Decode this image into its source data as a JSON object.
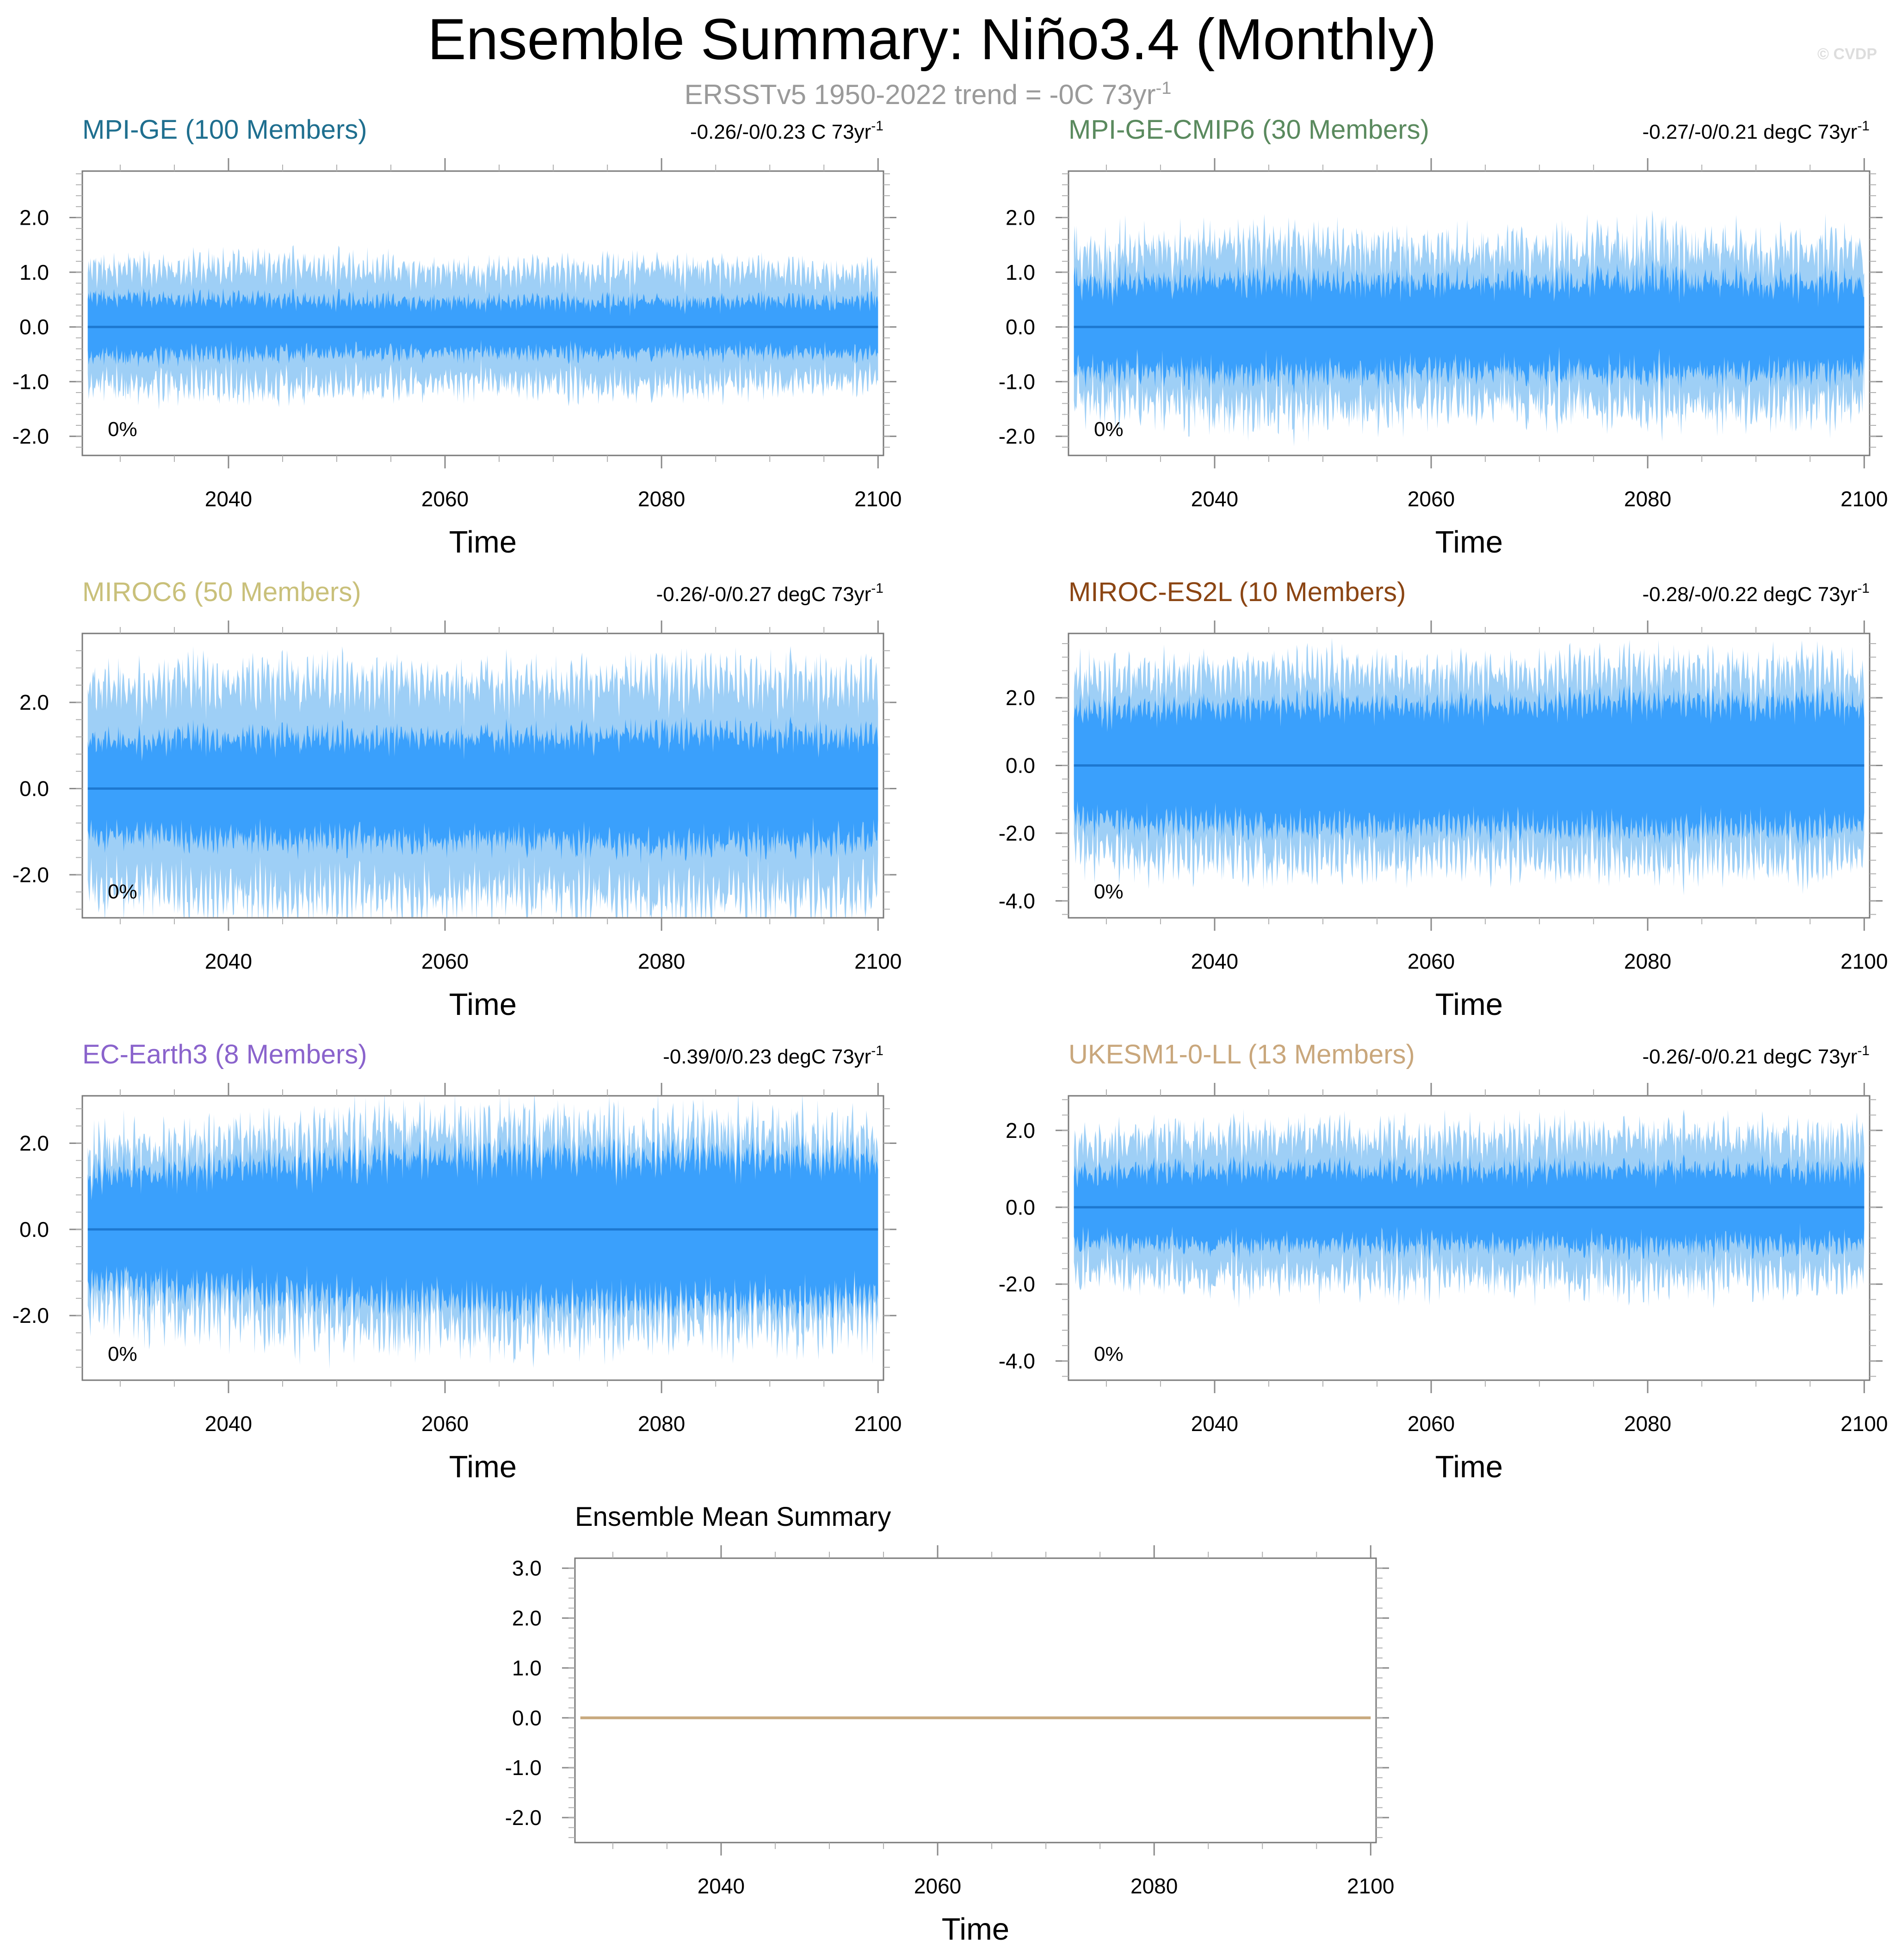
{
  "header": {
    "title": "Ensemble Summary: Niño3.4 (Monthly)",
    "subtitle": "ERSSTv5 1950-2022 trend = -0C 73yr",
    "subtitle_sup": "-1",
    "watermark": "© CVDP"
  },
  "colors": {
    "outer_band": "#9ecff6",
    "inner_band": "#3aa0fc",
    "mean_line": "#1d78d0",
    "ensemble_mean_line": "#c8a97e"
  },
  "chart_data": [
    {
      "type": "area",
      "title": "MPI-GE (100 Members)",
      "title_color": "#1f6f8f",
      "trend_label": "-0.26/-0/0.23 C 73yr",
      "trend_sup": "-1",
      "xlabel": "Time",
      "xlim": [
        2026.5,
        2100.5
      ],
      "x_ticks": [
        2040,
        2060,
        2080,
        2100
      ],
      "x_tick_labels": [
        "2040",
        "2060",
        "2080",
        "2100"
      ],
      "ylim": [
        -2.35,
        2.85
      ],
      "y_ticks": [
        -2.0,
        -1.0,
        0.0,
        1.0,
        2.0
      ],
      "y_tick_labels": [
        "-2.0",
        "-1.0",
        "0.0",
        "1.0",
        "2.0"
      ],
      "percent_label": "0%",
      "ensemble_mean": 0.0,
      "x_range": [
        2027,
        2100
      ],
      "outer_band_amplitude": [
        1.08,
        1.15,
        1.05,
        1.1,
        1.0
      ],
      "inner_band_amplitude": [
        0.55,
        0.5,
        0.48,
        0.46,
        0.5
      ],
      "band_variability": 0.18
    },
    {
      "type": "area",
      "title": "MPI-GE-CMIP6 (30 Members)",
      "title_color": "#5a8a5e",
      "trend_label": "-0.27/-0/0.21 degC 73yr",
      "trend_sup": "-1",
      "xlabel": "Time",
      "xlim": [
        2026.5,
        2100.5
      ],
      "x_ticks": [
        2040,
        2060,
        2080,
        2100
      ],
      "x_tick_labels": [
        "2040",
        "2060",
        "2080",
        "2100"
      ],
      "ylim": [
        -2.35,
        2.85
      ],
      "y_ticks": [
        -2.0,
        -1.0,
        0.0,
        1.0,
        2.0
      ],
      "y_tick_labels": [
        "-2.0",
        "-1.0",
        "0.0",
        "1.0",
        "2.0"
      ],
      "percent_label": "0%",
      "ensemble_mean": 0.0,
      "x_range": [
        2027,
        2100
      ],
      "outer_band_amplitude": [
        1.35,
        1.55,
        1.4,
        1.5,
        1.45
      ],
      "inner_band_amplitude": [
        0.8,
        0.85,
        0.8,
        0.85,
        0.8
      ],
      "band_variability": 0.3
    },
    {
      "type": "area",
      "title": "MIROC6 (50 Members)",
      "title_color": "#c9c07a",
      "trend_label": "-0.26/-0/0.27 degC 73yr",
      "trend_sup": "-1",
      "xlabel": "Time",
      "xlim": [
        2026.5,
        2100.5
      ],
      "x_ticks": [
        2040,
        2060,
        2080,
        2100
      ],
      "x_tick_labels": [
        "2040",
        "2060",
        "2080",
        "2100"
      ],
      "ylim": [
        -3.0,
        3.6
      ],
      "y_ticks": [
        -2.0,
        0.0,
        2.0
      ],
      "y_tick_labels": [
        "-2.0",
        "0.0",
        "2.0"
      ],
      "percent_label": "0%",
      "ensemble_mean": 0.0,
      "x_range": [
        2027,
        2100
      ],
      "outer_band_amplitude": [
        2.4,
        2.6,
        2.5,
        2.6,
        2.5
      ],
      "inner_band_amplitude": [
        1.1,
        1.2,
        1.2,
        1.3,
        1.2
      ],
      "band_variability": 0.35
    },
    {
      "type": "area",
      "title": "MIROC-ES2L (10 Members)",
      "title_color": "#8b4513",
      "trend_label": "-0.28/-0/0.22 degC 73yr",
      "trend_sup": "-1",
      "xlabel": "Time",
      "xlim": [
        2026.5,
        2100.5
      ],
      "x_ticks": [
        2040,
        2060,
        2080,
        2100
      ],
      "x_tick_labels": [
        "2040",
        "2060",
        "2080",
        "2100"
      ],
      "ylim": [
        -4.5,
        3.9
      ],
      "y_ticks": [
        -4.0,
        -2.0,
        0.0,
        2.0
      ],
      "y_tick_labels": [
        "-4.0",
        "-2.0",
        "0.0",
        "2.0"
      ],
      "percent_label": "0%",
      "ensemble_mean": 0.0,
      "x_range": [
        2027,
        2100
      ],
      "outer_band_amplitude": [
        2.6,
        2.9,
        2.8,
        2.9,
        2.8
      ],
      "inner_band_amplitude": [
        1.6,
        1.8,
        1.8,
        1.9,
        1.8
      ],
      "band_variability": 0.4
    },
    {
      "type": "area",
      "title": "EC-Earth3 (8 Members)",
      "title_color": "#8a63cc",
      "trend_label": "-0.39/0/0.23 degC 73yr",
      "trend_sup": "-1",
      "xlabel": "Time",
      "xlim": [
        2026.5,
        2100.5
      ],
      "x_ticks": [
        2040,
        2060,
        2080,
        2100
      ],
      "x_tick_labels": [
        "2040",
        "2060",
        "2080",
        "2100"
      ],
      "ylim": [
        -3.5,
        3.1
      ],
      "y_ticks": [
        -2.0,
        0.0,
        2.0
      ],
      "y_tick_labels": [
        "-2.0",
        "0.0",
        "2.0"
      ],
      "percent_label": "0%",
      "ensemble_mean": 0.0,
      "x_range": [
        2027,
        2100
      ],
      "outer_band_amplitude": [
        1.8,
        2.2,
        2.4,
        2.3,
        2.2
      ],
      "inner_band_amplitude": [
        1.2,
        1.5,
        1.7,
        1.7,
        1.6
      ],
      "band_variability": 0.45
    },
    {
      "type": "area",
      "title": "UKESM1-0-LL (13 Members)",
      "title_color": "#c9a77c",
      "trend_label": "-0.26/-0/0.21 degC 73yr",
      "trend_sup": "-1",
      "xlabel": "Time",
      "xlim": [
        2026.5,
        2100.5
      ],
      "x_ticks": [
        2040,
        2060,
        2080,
        2100
      ],
      "x_tick_labels": [
        "2040",
        "2060",
        "2080",
        "2100"
      ],
      "ylim": [
        -4.5,
        2.9
      ],
      "y_ticks": [
        -4.0,
        -2.0,
        0.0,
        2.0
      ],
      "y_tick_labels": [
        "-4.0",
        "-2.0",
        "0.0",
        "2.0"
      ],
      "percent_label": "0%",
      "ensemble_mean": 0.0,
      "x_range": [
        2027,
        2100
      ],
      "outer_band_amplitude": [
        1.7,
        1.9,
        1.8,
        1.9,
        1.8
      ],
      "inner_band_amplitude": [
        0.9,
        1.0,
        0.95,
        1.0,
        0.95
      ],
      "band_variability": 0.35
    },
    {
      "type": "line",
      "title": "Ensemble Mean Summary",
      "title_color": "#000000",
      "trend_label": "",
      "trend_sup": "",
      "xlabel": "Time",
      "xlim": [
        2026.5,
        2100.5
      ],
      "x_ticks": [
        2040,
        2060,
        2080,
        2100
      ],
      "x_tick_labels": [
        "2040",
        "2060",
        "2080",
        "2100"
      ],
      "ylim": [
        -2.5,
        3.2
      ],
      "y_ticks": [
        -2.0,
        -1.0,
        0.0,
        1.0,
        2.0,
        3.0
      ],
      "y_tick_labels": [
        "-2.0",
        "-1.0",
        "0.0",
        "1.0",
        "2.0",
        "3.0"
      ],
      "percent_label": "",
      "series": [
        {
          "name": "Ensemble mean",
          "x": [
            2027,
            2100
          ],
          "y": [
            0.0,
            0.0
          ]
        }
      ]
    }
  ]
}
